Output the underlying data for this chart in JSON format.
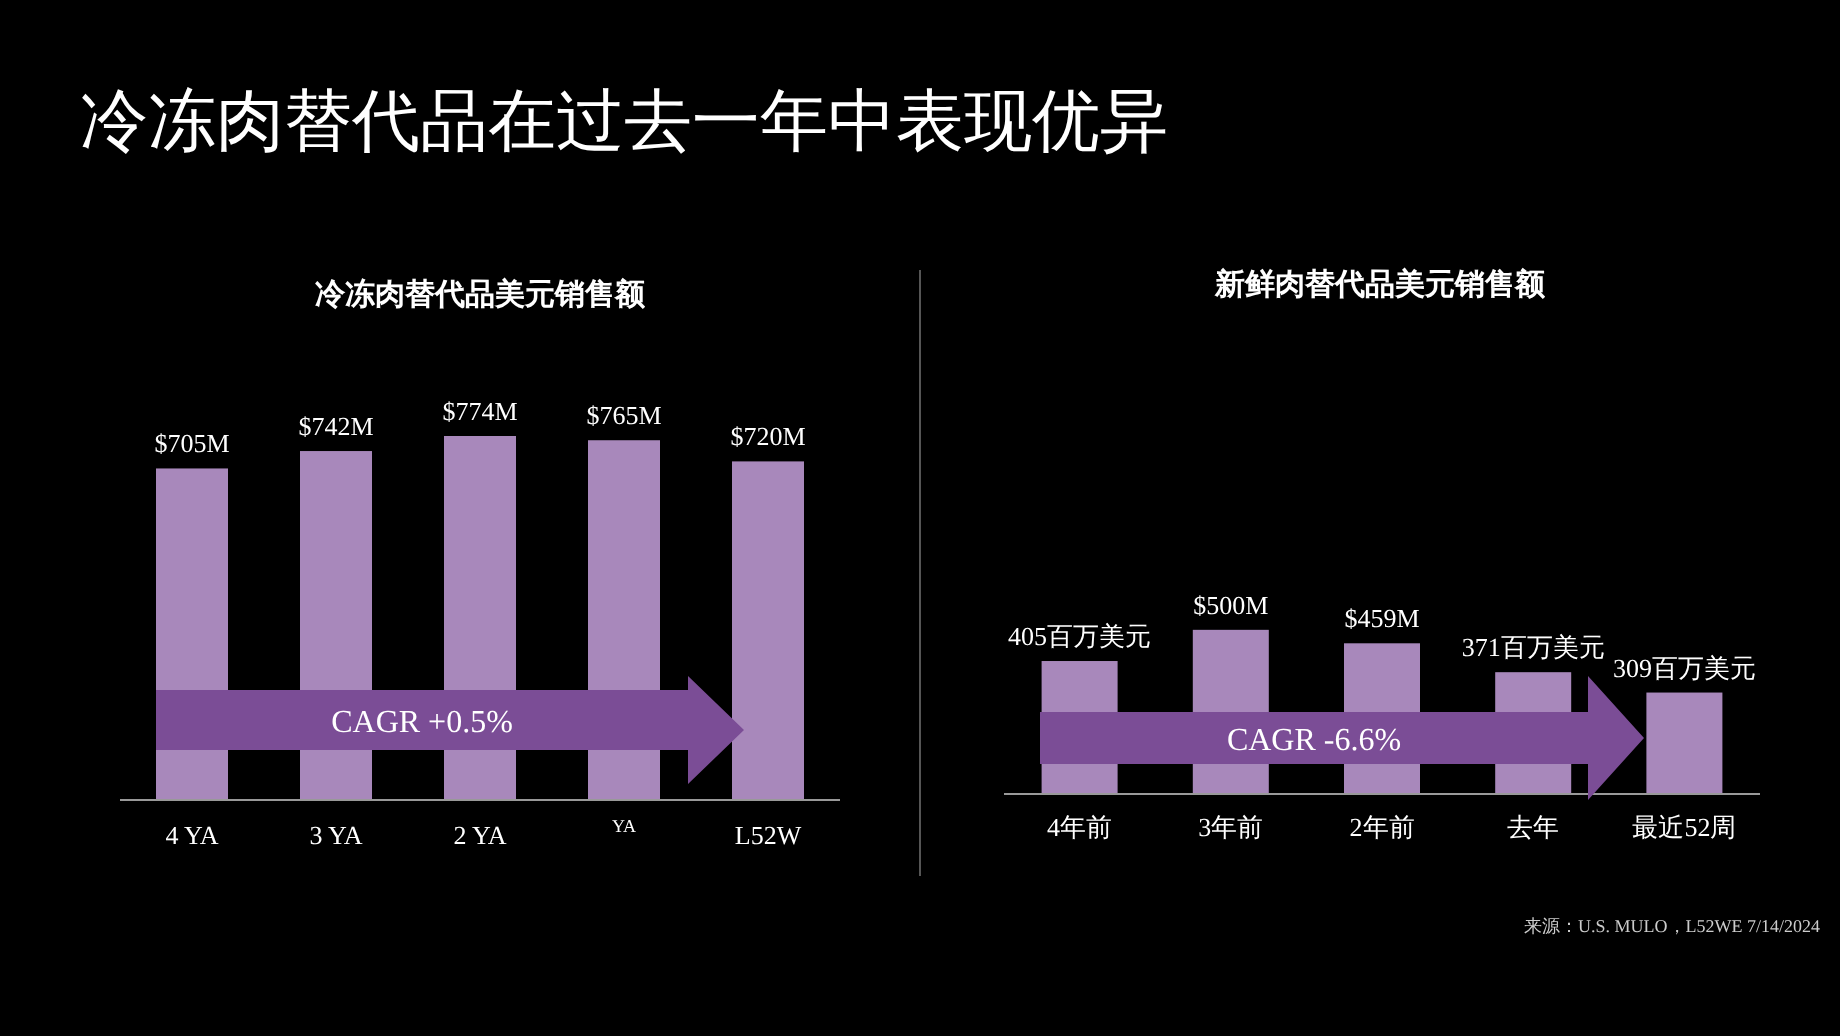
{
  "chart_data": [
    {
      "type": "bar",
      "title": "冷冻肉替代品在过去一年中表现优异",
      "subtitle": "冷冻肉替代品美元销售额",
      "categories": [
        "4 YA",
        "3 YA",
        "2 YA",
        "YA",
        "L52W"
      ],
      "values": [
        705,
        742,
        774,
        765,
        720
      ],
      "value_labels": [
        "$705M",
        "$742M",
        "$774M",
        "$765M",
        "$720M"
      ],
      "color": "#a888bb",
      "annotations": [
        "CAGR +0.5%"
      ]
    },
    {
      "type": "bar",
      "subtitle": "新鲜肉替代品美元销售额",
      "categories": [
        "4年前",
        "3年前",
        "2年前",
        "去年",
        "最近52周"
      ],
      "values": [
        405,
        500,
        459,
        371,
        309
      ],
      "value_labels": [
        "405百万美元",
        "$500M",
        "$459M",
        "371百万美元",
        "309百万美元"
      ],
      "color": "#a888bb",
      "annotations": [
        "CAGR -6.6%",
        "来源：U.S. MULO，L52WE 7/14/2024"
      ]
    }
  ]
}
